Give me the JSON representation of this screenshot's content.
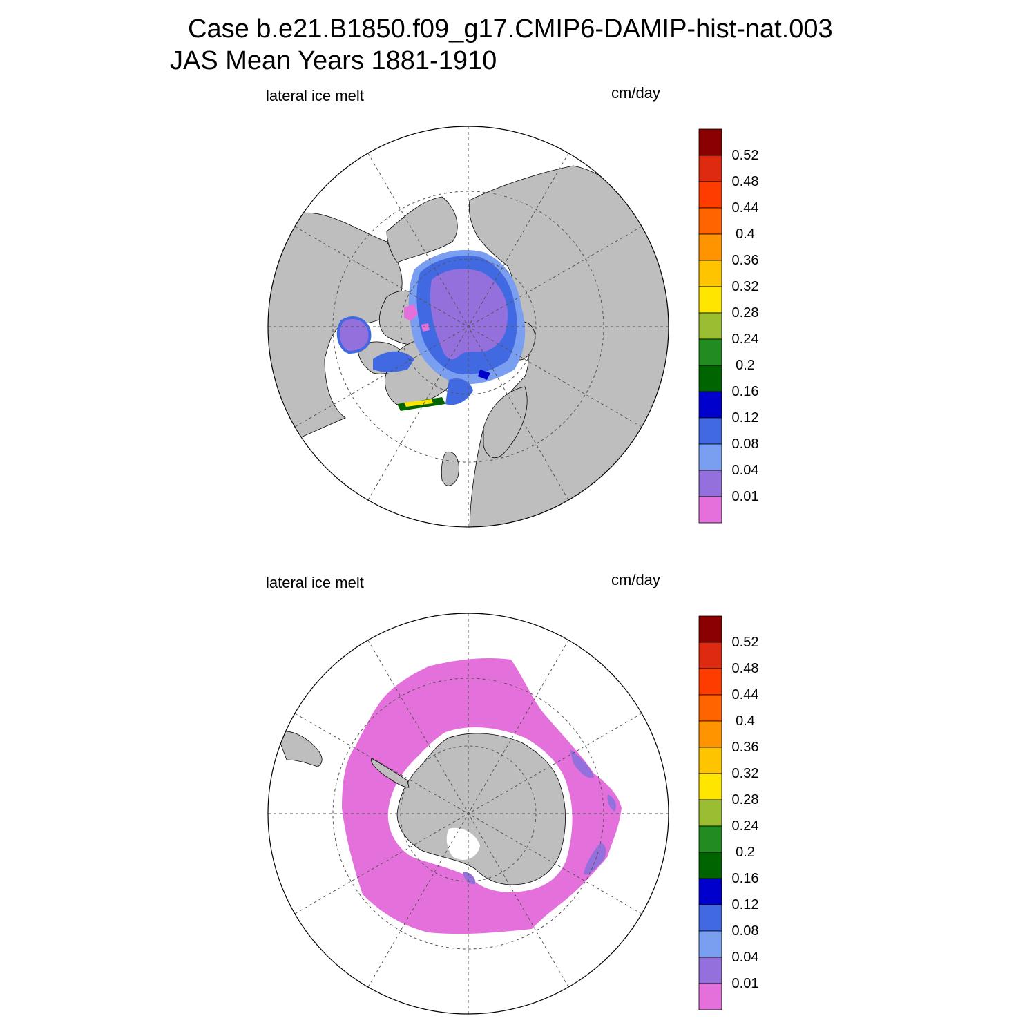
{
  "title": {
    "line1": "Case b.e21.B1850.f09_g17.CMIP6-DAMIP-hist-nat.003",
    "line2": "JAS Mean   Years 1881-1910"
  },
  "panels": [
    {
      "name": "north",
      "left_label": "lateral ice melt",
      "right_label": "cm/day"
    },
    {
      "name": "south",
      "left_label": "lateral ice melt",
      "right_label": "cm/day"
    }
  ],
  "colorbar": {
    "labels": [
      "0.52",
      "0.48",
      "0.44",
      "0.4",
      "0.36",
      "0.32",
      "0.28",
      "0.24",
      "0.2",
      "0.16",
      "0.12",
      "0.08",
      "0.04",
      "0.01"
    ],
    "colors": [
      "#8b0000",
      "#dd2a10",
      "#ff3c00",
      "#ff6400",
      "#ff9400",
      "#ffc400",
      "#ffe600",
      "#9abd32",
      "#228b22",
      "#006400",
      "#0000cd",
      "#4169e1",
      "#7b9ff0",
      "#9370db",
      "#e370db"
    ]
  },
  "colors": {
    "land": "#bebebe",
    "ocean": "#ffffff",
    "grid": "#555555"
  }
}
